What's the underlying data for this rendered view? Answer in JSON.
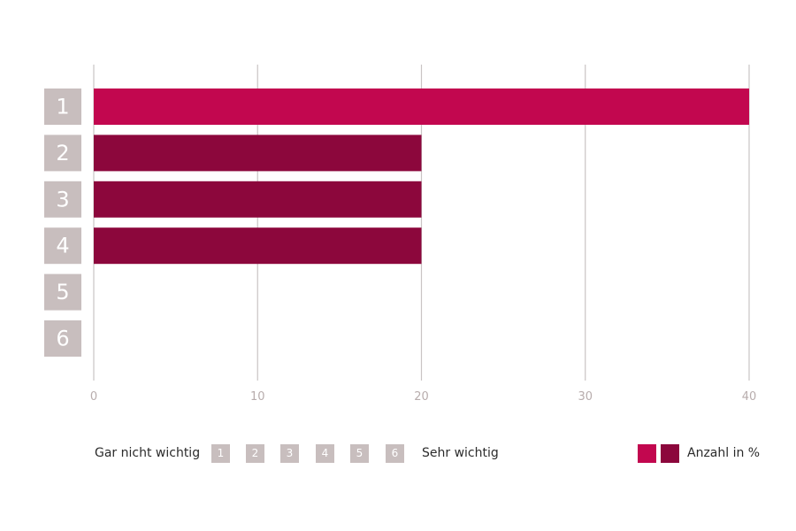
{
  "chart_data": {
    "type": "bar",
    "orientation": "horizontal",
    "categories": [
      "1",
      "2",
      "3",
      "4",
      "5",
      "6"
    ],
    "values": [
      40,
      20,
      20,
      20,
      0,
      0
    ],
    "xlim": [
      0,
      40
    ],
    "xticks": [
      "0",
      "10",
      "20",
      "30",
      "40"
    ],
    "grid": true,
    "colors": {
      "highlight": "#c2074f",
      "bar": "#8c073c",
      "category_box": "#c8bebe",
      "grid": "#c9c4c4",
      "tick_text": "#b8adad"
    }
  },
  "legend": {
    "left_label": "Gar nicht wichtig",
    "scale": [
      "1",
      "2",
      "3",
      "4",
      "5",
      "6"
    ],
    "right_label": "Sehr wichtig",
    "series_label": "Anzahl in %"
  }
}
